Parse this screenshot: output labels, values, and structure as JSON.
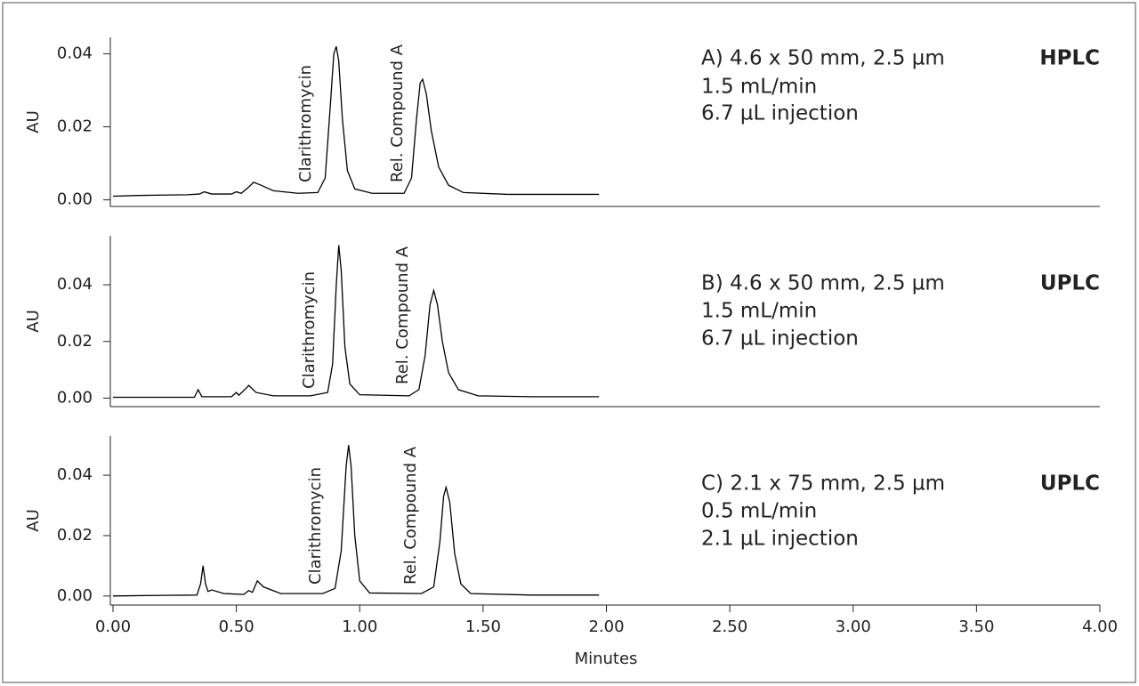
{
  "chart_data": [
    {
      "type": "line",
      "color": "#000000",
      "ylabel": "AU",
      "conditions": [
        "A) 4.6 x 50 mm, 2.5 µm",
        "1.5 mL/min",
        "6.7 µL injection"
      ],
      "technique": "HPLC",
      "annotations": [
        "Clarithromycin",
        "Rel. Compound A"
      ],
      "xlim": [
        0,
        4
      ],
      "ylim": [
        -0.0018,
        0.0445
      ],
      "yticks": [
        {
          "value": 0,
          "label": "0.00"
        },
        {
          "value": 0.02,
          "label": "0.02"
        },
        {
          "value": 0.04,
          "label": "0.04"
        }
      ],
      "x": [
        0.0,
        0.1,
        0.2,
        0.3,
        0.35,
        0.37,
        0.4,
        0.48,
        0.5,
        0.52,
        0.55,
        0.57,
        0.6,
        0.65,
        0.75,
        0.83,
        0.86,
        0.88,
        0.895,
        0.905,
        0.915,
        0.93,
        0.95,
        0.98,
        1.05,
        1.18,
        1.21,
        1.23,
        1.245,
        1.255,
        1.27,
        1.29,
        1.32,
        1.36,
        1.42,
        1.6,
        1.8,
        1.97
      ],
      "values": [
        0.001,
        0.0012,
        0.0013,
        0.0014,
        0.0016,
        0.0022,
        0.0016,
        0.0016,
        0.0022,
        0.0018,
        0.0035,
        0.0048,
        0.004,
        0.0025,
        0.0018,
        0.002,
        0.006,
        0.025,
        0.04,
        0.042,
        0.038,
        0.022,
        0.008,
        0.003,
        0.0018,
        0.0018,
        0.006,
        0.022,
        0.032,
        0.033,
        0.029,
        0.019,
        0.009,
        0.004,
        0.002,
        0.0015,
        0.0015,
        0.0015
      ]
    },
    {
      "type": "line",
      "color": "#000000",
      "ylabel": "AU",
      "conditions": [
        "B) 4.6 x 50 mm, 2.5 µm",
        "1.5 mL/min",
        "6.7 µL injection"
      ],
      "technique": "UPLC",
      "annotations": [
        "Clarithromycin",
        "Rel. Compound A"
      ],
      "xlim": [
        0,
        4
      ],
      "ylim": [
        -0.003,
        0.0573
      ],
      "yticks": [
        {
          "value": 0,
          "label": "0.00"
        },
        {
          "value": 0.02,
          "label": "0.02"
        },
        {
          "value": 0.04,
          "label": "0.04"
        }
      ],
      "x": [
        0.0,
        0.2,
        0.33,
        0.345,
        0.36,
        0.48,
        0.5,
        0.51,
        0.54,
        0.55,
        0.58,
        0.65,
        0.8,
        0.87,
        0.89,
        0.905,
        0.915,
        0.925,
        0.94,
        0.96,
        1.0,
        1.2,
        1.24,
        1.265,
        1.285,
        1.3,
        1.315,
        1.335,
        1.36,
        1.4,
        1.48,
        1.7,
        1.97
      ],
      "values": [
        0.0003,
        0.0003,
        0.0003,
        0.003,
        0.0005,
        0.0005,
        0.002,
        0.001,
        0.0035,
        0.0045,
        0.002,
        0.0008,
        0.0008,
        0.002,
        0.012,
        0.04,
        0.054,
        0.045,
        0.018,
        0.005,
        0.0012,
        0.0008,
        0.003,
        0.015,
        0.033,
        0.038,
        0.033,
        0.02,
        0.009,
        0.003,
        0.0008,
        0.0005,
        0.0005
      ]
    },
    {
      "type": "line",
      "color": "#000000",
      "ylabel": "AU",
      "xlabel": "Minutes",
      "conditions": [
        "C) 2.1 x 75 mm, 2.5 µm",
        "0.5 mL/min",
        "2.1 µL injection"
      ],
      "technique": "UPLC",
      "annotations": [
        "Clarithromycin",
        "Rel. Compound A"
      ],
      "xlim": [
        0,
        4
      ],
      "ylim": [
        -0.003,
        0.053
      ],
      "xticks": [
        {
          "value": 0,
          "label": "0.00"
        },
        {
          "value": 0.5,
          "label": "0.50"
        },
        {
          "value": 1,
          "label": "1.00"
        },
        {
          "value": 1.5,
          "label": "1.50"
        },
        {
          "value": 2,
          "label": "2.00"
        },
        {
          "value": 2.5,
          "label": "2.50"
        },
        {
          "value": 3,
          "label": "3.00"
        },
        {
          "value": 3.5,
          "label": "3.50"
        },
        {
          "value": 4,
          "label": "4.00"
        }
      ],
      "yticks": [
        {
          "value": 0,
          "label": "0.00"
        },
        {
          "value": 0.02,
          "label": "0.02"
        },
        {
          "value": 0.04,
          "label": "0.04"
        }
      ],
      "x": [
        0.0,
        0.2,
        0.34,
        0.355,
        0.365,
        0.375,
        0.385,
        0.4,
        0.45,
        0.53,
        0.55,
        0.565,
        0.585,
        0.61,
        0.68,
        0.85,
        0.9,
        0.925,
        0.945,
        0.955,
        0.965,
        0.98,
        1.0,
        1.04,
        1.25,
        1.3,
        1.325,
        1.34,
        1.35,
        1.365,
        1.385,
        1.41,
        1.45,
        1.7,
        1.97
      ],
      "values": [
        0.0,
        0.0002,
        0.0003,
        0.004,
        0.01,
        0.004,
        0.0015,
        0.002,
        0.0008,
        0.0005,
        0.0018,
        0.0012,
        0.005,
        0.003,
        0.0008,
        0.0008,
        0.0025,
        0.015,
        0.043,
        0.05,
        0.043,
        0.02,
        0.005,
        0.001,
        0.0008,
        0.003,
        0.018,
        0.033,
        0.036,
        0.031,
        0.014,
        0.004,
        0.0008,
        0.0003,
        0.0003
      ]
    }
  ]
}
